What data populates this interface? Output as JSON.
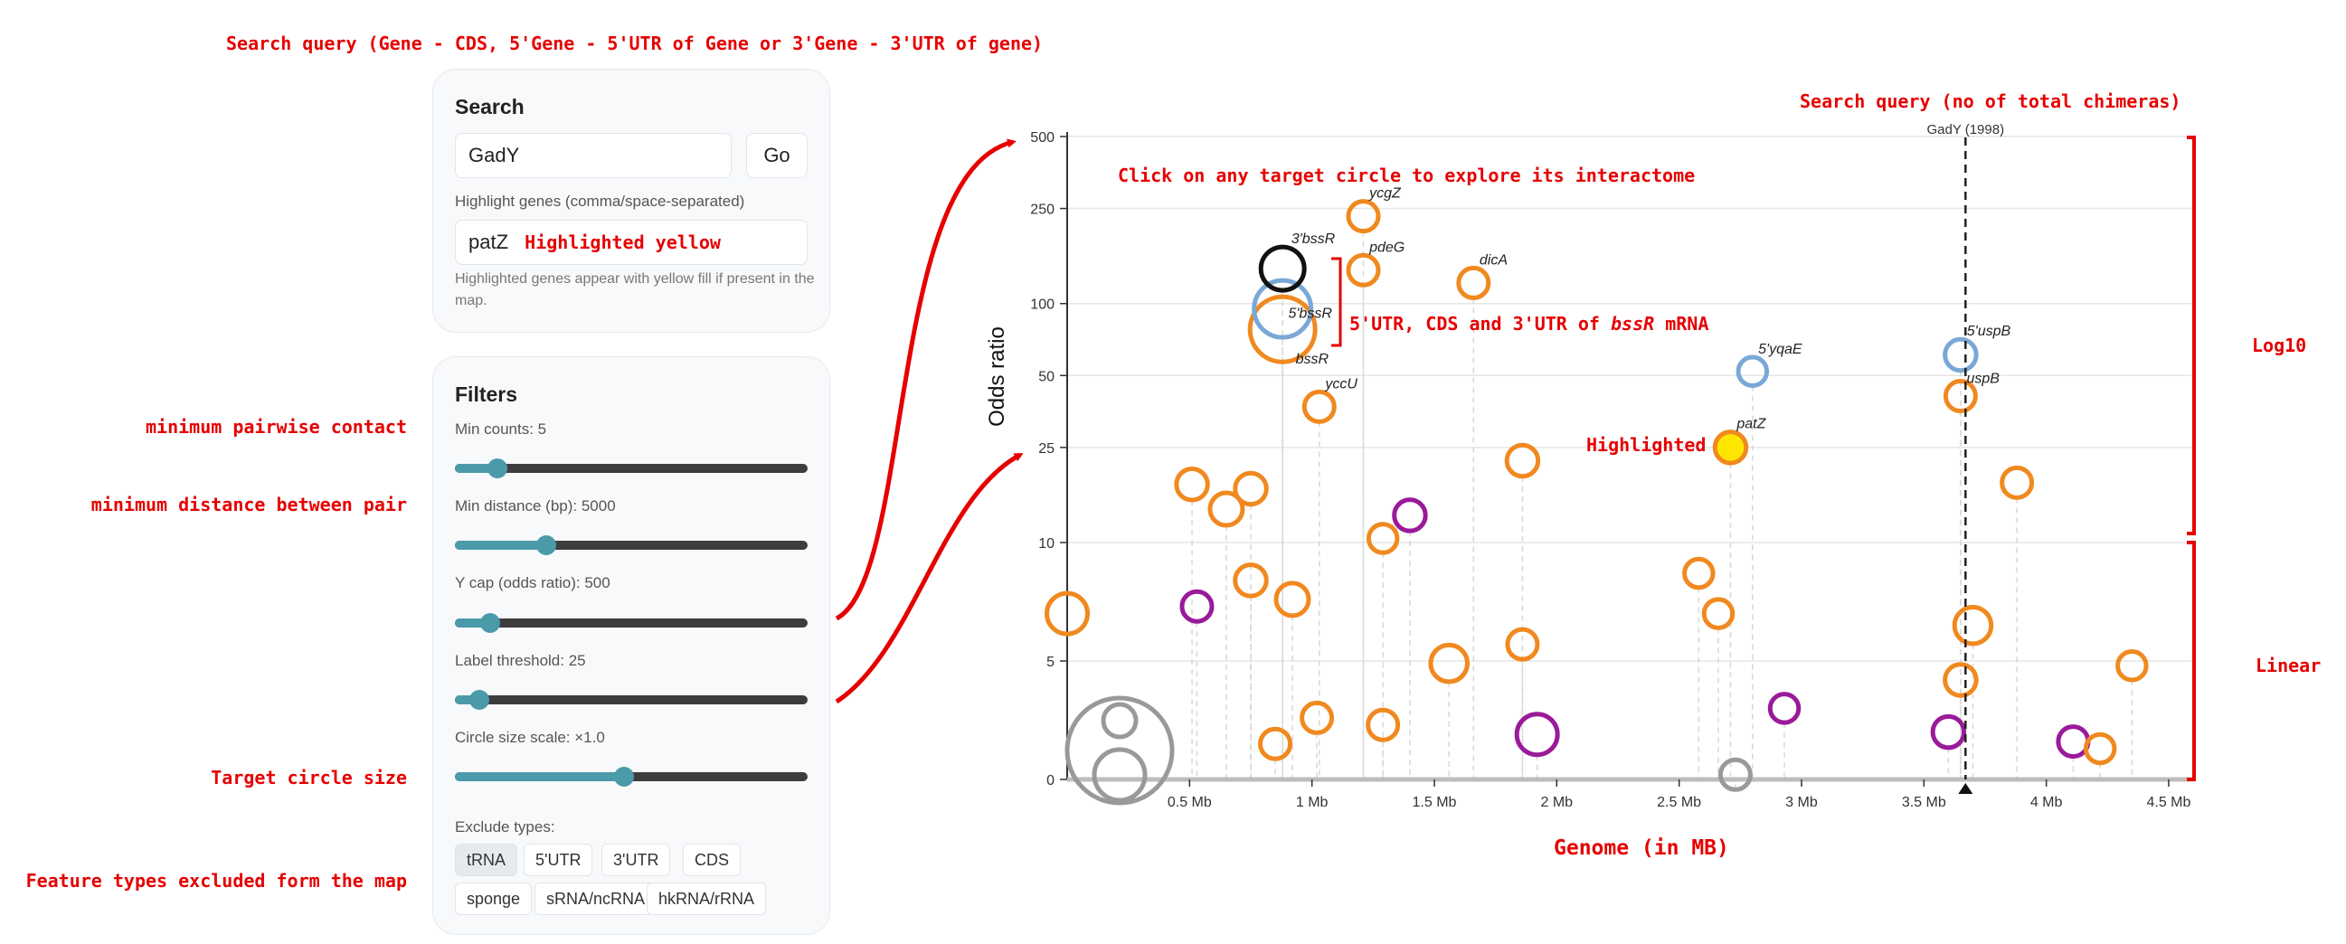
{
  "annotations": {
    "search_query_top": "Search query (Gene - CDS, 5'Gene - 5'UTR of Gene or 3'Gene - 3'UTR of gene)",
    "search_query_chart": "Search query (no of total chimeras)",
    "click_hint": "Click on any target circle to explore its interactome",
    "bracket_note_prefix": "5'UTR, CDS and 3'UTR of ",
    "bracket_note_gene": "bssR",
    "bracket_note_suffix": " mRNA",
    "highlighted_label": "Highlighted",
    "highlighted_yellow": "Highlighted yellow",
    "min_pairwise": "minimum pairwise contact",
    "min_distance": "minimum distance between pair",
    "target_size": "Target circle size",
    "feature_types": "Feature types excluded form the map",
    "log_scale": "Log10",
    "linear_scale": "Linear",
    "x_caption": "Genome (in MB)"
  },
  "search": {
    "title": "Search",
    "value": "GadY",
    "go_label": "Go",
    "highlight_label": "Highlight genes (comma/space-separated)",
    "highlight_value": "patZ",
    "highlight_hint": "Highlighted genes appear with yellow fill if present in the map."
  },
  "filters": {
    "title": "Filters",
    "min_counts": {
      "label": "Min counts: 5",
      "fraction": 0.12
    },
    "min_distance": {
      "label": "Min distance (bp): 5000",
      "fraction": 0.26
    },
    "y_cap": {
      "label": "Y cap (odds ratio): 500",
      "fraction": 0.1
    },
    "label_threshold": {
      "label": "Label threshold: 25",
      "fraction": 0.07
    },
    "circle_scale": {
      "label": "Circle size scale: ×1.0",
      "fraction": 0.48
    },
    "exclude_label": "Exclude types:",
    "exclude_types": [
      {
        "label": "tRNA",
        "active": true
      },
      {
        "label": "5'UTR",
        "active": false
      },
      {
        "label": "3'UTR",
        "active": false
      },
      {
        "label": "CDS",
        "active": false
      },
      {
        "label": "sponge",
        "active": false
      },
      {
        "label": "sRNA/ncRNA",
        "active": false
      },
      {
        "label": "hkRNA/rRNA",
        "active": false
      }
    ]
  },
  "chart_data": {
    "type": "scatter",
    "ylabel": "Odds ratio",
    "xlabel": "",
    "x_unit": "Mb",
    "xlim": [
      0,
      4.6
    ],
    "x_ticks": [
      {
        "v": 0.5,
        "label": "0.5 Mb"
      },
      {
        "v": 1.0,
        "label": "1 Mb"
      },
      {
        "v": 1.5,
        "label": "1.5 Mb"
      },
      {
        "v": 2.0,
        "label": "2 Mb"
      },
      {
        "v": 2.5,
        "label": "2.5 Mb"
      },
      {
        "v": 3.0,
        "label": "3 Mb"
      },
      {
        "v": 3.5,
        "label": "3.5 Mb"
      },
      {
        "v": 4.0,
        "label": "4 Mb"
      },
      {
        "v": 4.5,
        "label": "4.5 Mb"
      }
    ],
    "y_scale": "linear from 0 to 10, log10 from 10 to 500",
    "y_ticks": [
      0,
      5,
      10,
      25,
      50,
      100,
      250,
      500
    ],
    "grid": true,
    "query_marker": {
      "x": 3.67,
      "label": "GadY (1998)"
    },
    "colors": {
      "orange": "#f0891f",
      "purple": "#9a1a9a",
      "blue": "#7aa8d6",
      "black": "#111111",
      "gray": "#999999",
      "yellow_fill": "#ffe600"
    },
    "points": [
      {
        "x": 0.0,
        "y": 7.0,
        "size": 1.5,
        "color": "orange",
        "label": ""
      },
      {
        "x": 0.51,
        "y": 17.5,
        "size": 1.15,
        "color": "orange",
        "label": ""
      },
      {
        "x": 0.53,
        "y": 7.3,
        "size": 1.1,
        "color": "purple",
        "label": ""
      },
      {
        "x": 0.65,
        "y": 13.8,
        "size": 1.2,
        "color": "orange",
        "label": ""
      },
      {
        "x": 0.75,
        "y": 8.4,
        "size": 1.15,
        "color": "orange",
        "label": ""
      },
      {
        "x": 0.75,
        "y": 16.8,
        "size": 1.15,
        "color": "orange",
        "label": ""
      },
      {
        "x": 0.85,
        "y": 1.5,
        "size": 1.1,
        "color": "orange",
        "label": ""
      },
      {
        "x": 0.88,
        "y": 78,
        "size": 2.4,
        "color": "orange",
        "label": "bssR"
      },
      {
        "x": 0.88,
        "y": 95,
        "size": 2.1,
        "color": "blue",
        "label": "5'bssR"
      },
      {
        "x": 0.88,
        "y": 140,
        "size": 1.6,
        "color": "black",
        "label": "3'bssR"
      },
      {
        "x": 0.92,
        "y": 7.6,
        "size": 1.2,
        "color": "orange",
        "label": ""
      },
      {
        "x": 1.02,
        "y": 2.6,
        "size": 1.1,
        "color": "orange",
        "label": ""
      },
      {
        "x": 1.03,
        "y": 37,
        "size": 1.1,
        "color": "orange",
        "label": "yccU"
      },
      {
        "x": 1.21,
        "y": 138,
        "size": 1.1,
        "color": "orange",
        "label": "pdeG"
      },
      {
        "x": 1.21,
        "y": 232,
        "size": 1.1,
        "color": "orange",
        "label": "ycgZ"
      },
      {
        "x": 1.29,
        "y": 10.4,
        "size": 1.05,
        "color": "orange",
        "label": ""
      },
      {
        "x": 1.29,
        "y": 2.3,
        "size": 1.1,
        "color": "orange",
        "label": ""
      },
      {
        "x": 1.4,
        "y": 13.0,
        "size": 1.15,
        "color": "purple",
        "label": ""
      },
      {
        "x": 1.56,
        "y": 4.9,
        "size": 1.35,
        "color": "orange",
        "label": ""
      },
      {
        "x": 1.66,
        "y": 122,
        "size": 1.1,
        "color": "orange",
        "label": "dicA"
      },
      {
        "x": 1.86,
        "y": 22,
        "size": 1.15,
        "color": "orange",
        "label": ""
      },
      {
        "x": 1.86,
        "y": 5.7,
        "size": 1.1,
        "color": "orange",
        "label": ""
      },
      {
        "x": 1.92,
        "y": 1.9,
        "size": 1.5,
        "color": "purple",
        "label": ""
      },
      {
        "x": 2.58,
        "y": 8.7,
        "size": 1.05,
        "color": "orange",
        "label": ""
      },
      {
        "x": 2.66,
        "y": 7.0,
        "size": 1.05,
        "color": "orange",
        "label": ""
      },
      {
        "x": 2.71,
        "y": 25,
        "size": 1.15,
        "color": "orange",
        "label": "patZ",
        "highlighted": true
      },
      {
        "x": 2.73,
        "y": 0.2,
        "size": 1.1,
        "color": "gray",
        "label": ""
      },
      {
        "x": 2.8,
        "y": 52,
        "size": 1.05,
        "color": "blue",
        "label": "5'yqaE"
      },
      {
        "x": 2.93,
        "y": 3.0,
        "size": 1.05,
        "color": "purple",
        "label": ""
      },
      {
        "x": 3.6,
        "y": 2.0,
        "size": 1.15,
        "color": "purple",
        "label": ""
      },
      {
        "x": 3.65,
        "y": 41,
        "size": 1.1,
        "color": "orange",
        "label": "uspB"
      },
      {
        "x": 3.65,
        "y": 61,
        "size": 1.15,
        "color": "blue",
        "label": "5'uspB"
      },
      {
        "x": 3.65,
        "y": 4.2,
        "size": 1.15,
        "color": "orange",
        "label": ""
      },
      {
        "x": 3.7,
        "y": 6.5,
        "size": 1.35,
        "color": "orange",
        "label": ""
      },
      {
        "x": 3.88,
        "y": 17.8,
        "size": 1.1,
        "color": "orange",
        "label": ""
      },
      {
        "x": 4.11,
        "y": 1.6,
        "size": 1.1,
        "color": "purple",
        "label": ""
      },
      {
        "x": 4.22,
        "y": 1.3,
        "size": 1.05,
        "color": "orange",
        "label": ""
      },
      {
        "x": 4.35,
        "y": 4.8,
        "size": 1.05,
        "color": "orange",
        "label": ""
      }
    ]
  }
}
